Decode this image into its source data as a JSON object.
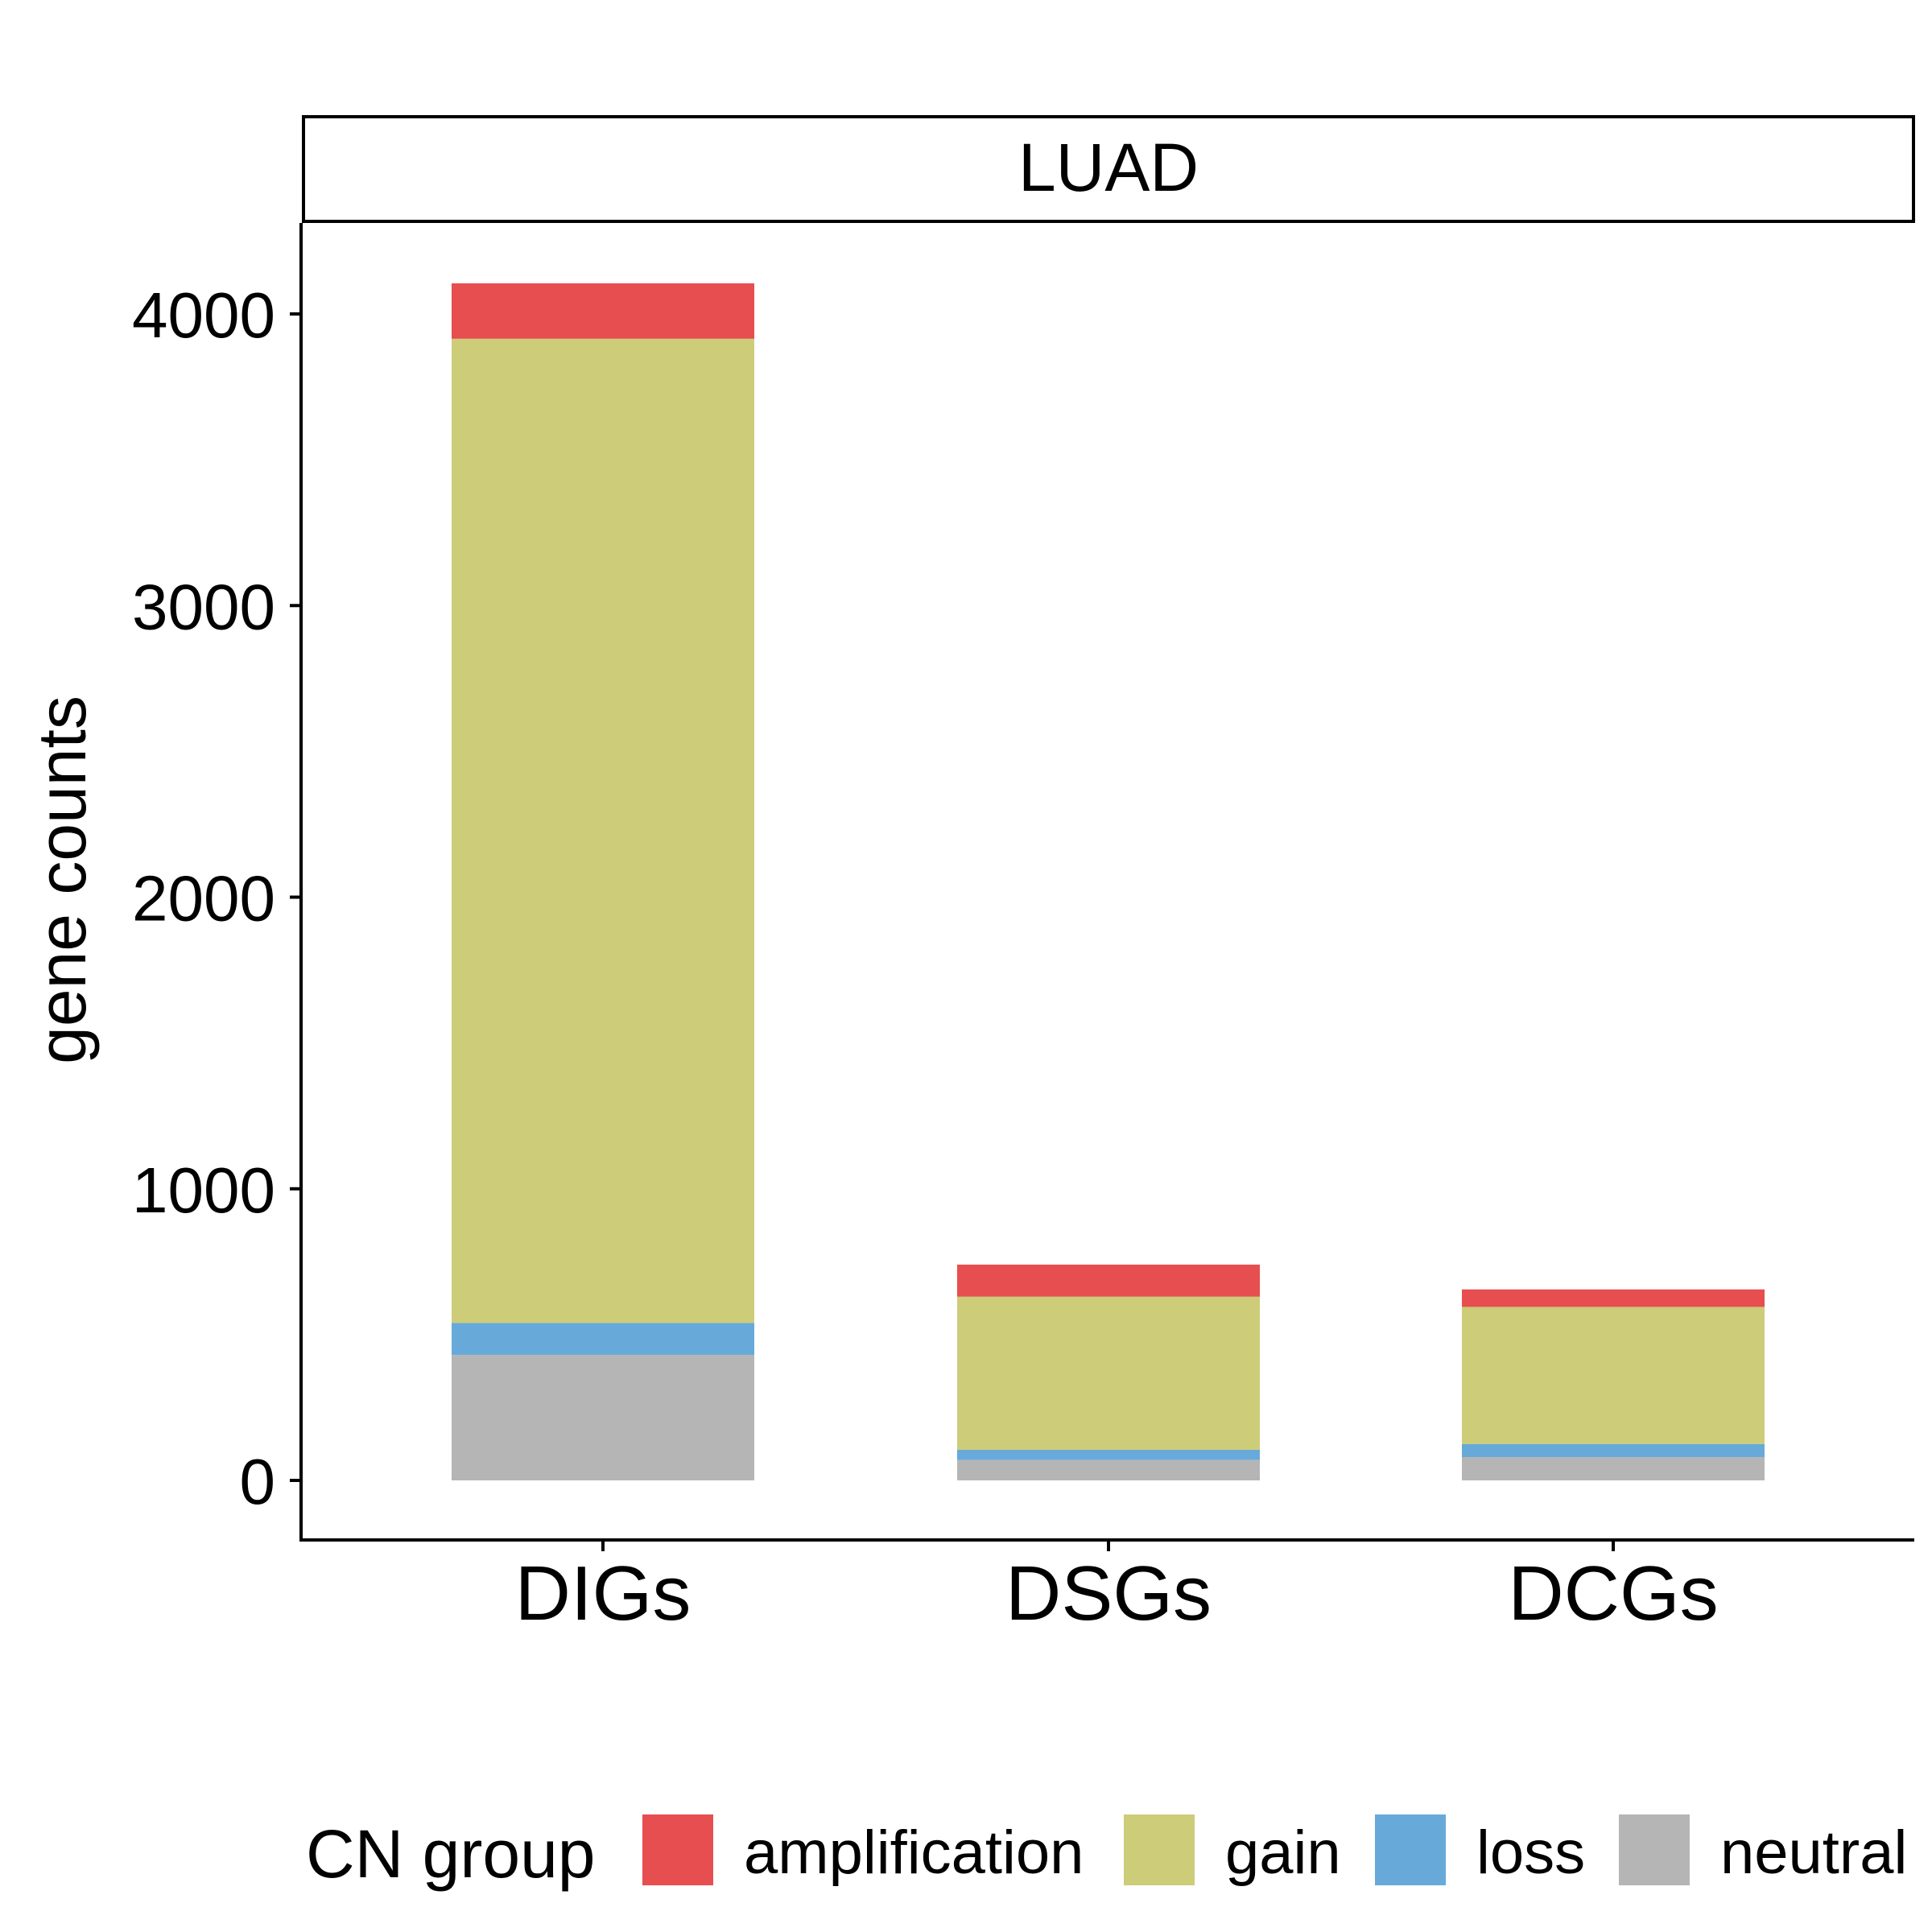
{
  "chart_data": {
    "type": "bar",
    "stacked": true,
    "facet_title": "LUAD",
    "ylabel": "gene counts",
    "xlabel": "",
    "categories": [
      "DIGs",
      "DSGs",
      "DCGs"
    ],
    "ylim": [
      -200,
      4300
    ],
    "yticks": [
      0,
      1000,
      2000,
      3000,
      4000
    ],
    "series": [
      {
        "name": "neutral",
        "color": "#B5B5B5",
        "values": [
          430,
          70,
          80
        ]
      },
      {
        "name": "loss",
        "color": "#67AADA",
        "values": [
          110,
          35,
          45
        ]
      },
      {
        "name": "gain",
        "color": "#CDCC79",
        "values": [
          3375,
          525,
          470
        ]
      },
      {
        "name": "amplification",
        "color": "#E64E50",
        "values": [
          190,
          110,
          60
        ]
      }
    ],
    "legend": {
      "title": "CN group",
      "position": "bottom",
      "items": [
        "amplification",
        "gain",
        "loss",
        "neutral"
      ]
    },
    "grid": false
  }
}
